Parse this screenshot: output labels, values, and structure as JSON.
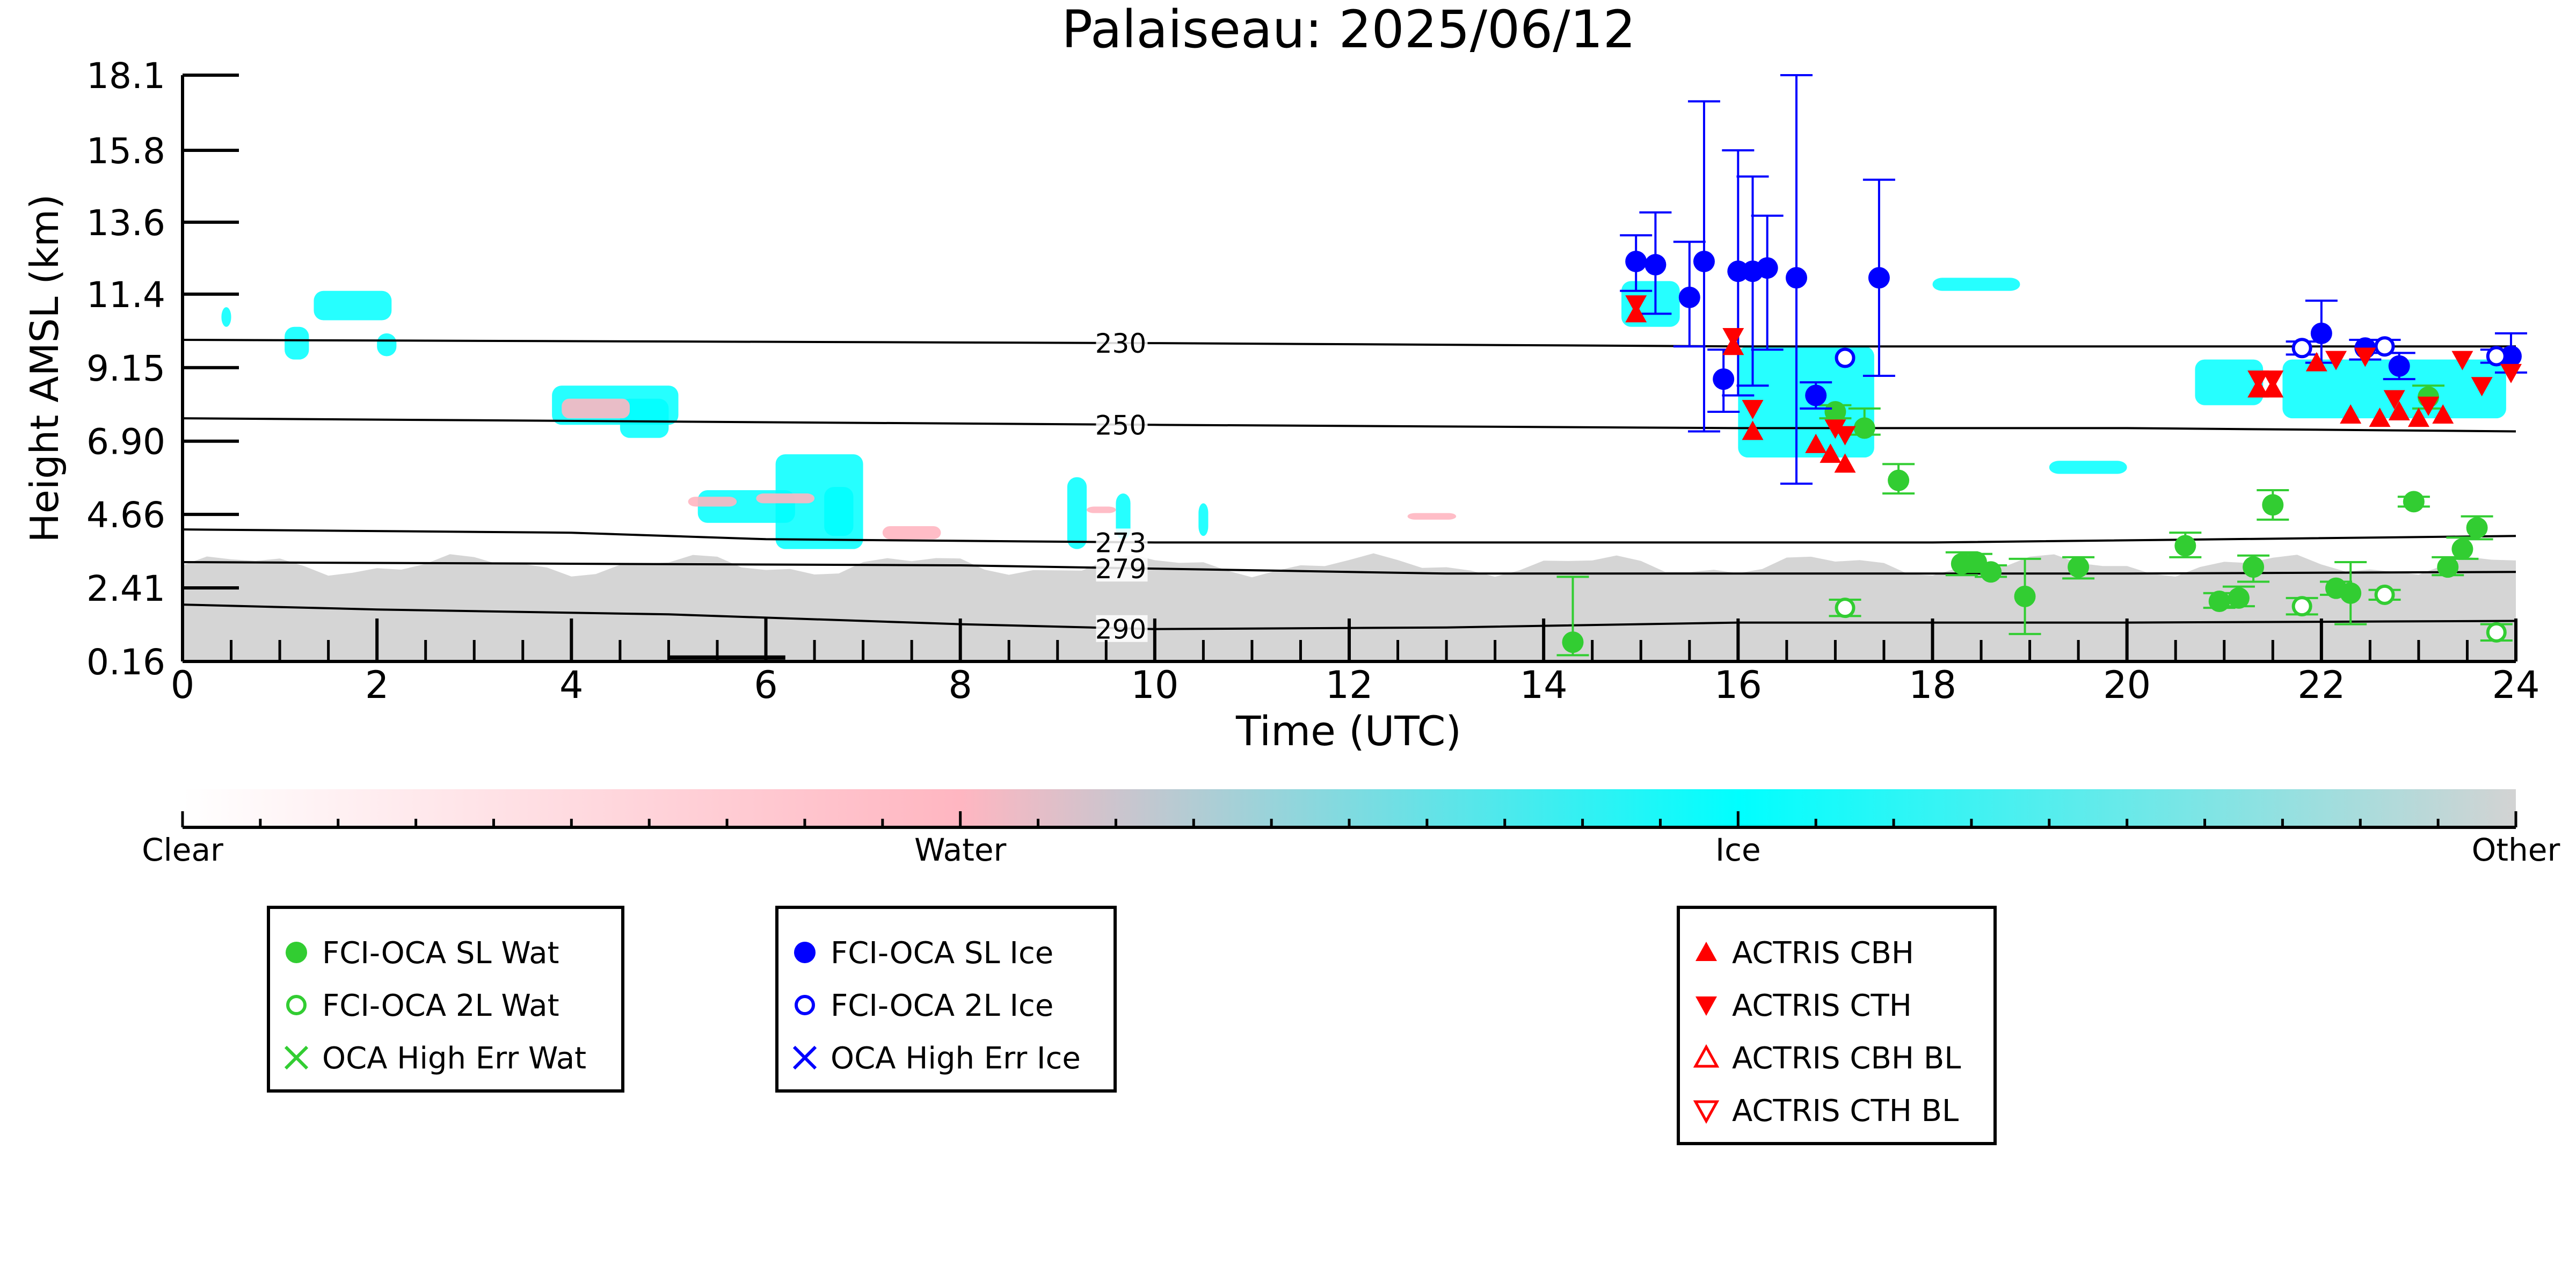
{
  "chart_data": {
    "type": "scatter",
    "title": "Palaiseau: 2025/06/12",
    "xlabel": "Time (UTC)",
    "ylabel": "Height AMSL (km)",
    "xlim": [
      0,
      24
    ],
    "ylim": [
      0.16,
      18.1
    ],
    "x_ticks": [
      "0",
      "2",
      "4",
      "6",
      "8",
      "10",
      "12",
      "14",
      "16",
      "18",
      "20",
      "22",
      "24"
    ],
    "y_ticks": [
      "0.16",
      "2.41",
      "4.66",
      "6.90",
      "9.15",
      "11.4",
      "13.6",
      "15.8",
      "18.1"
    ],
    "y_tick_values": [
      0.16,
      2.41,
      4.66,
      6.9,
      9.15,
      11.4,
      13.6,
      15.8,
      18.1
    ],
    "colors": {
      "water": "#32cd32",
      "ice": "#0000ff",
      "actris": "#ff0000",
      "cloud_ice": "#00ffff",
      "cloud_water": "#ffb6c1",
      "cloud_other": "#d3d3d3"
    },
    "temperature_contours": [
      {
        "label": "230",
        "x": [
          0,
          10,
          16,
          20,
          24
        ],
        "y": [
          10.0,
          9.9,
          9.8,
          9.8,
          9.8
        ]
      },
      {
        "label": "250",
        "x": [
          0,
          10,
          16,
          20,
          24
        ],
        "y": [
          7.6,
          7.4,
          7.3,
          7.3,
          7.2
        ]
      },
      {
        "label": "273",
        "x": [
          0,
          4,
          6,
          10,
          14,
          18,
          24
        ],
        "y": [
          4.2,
          4.1,
          3.9,
          3.8,
          3.8,
          3.8,
          4.0
        ]
      },
      {
        "label": "279",
        "x": [
          0,
          4,
          8,
          10,
          13,
          16,
          20,
          24
        ],
        "y": [
          3.2,
          3.15,
          3.1,
          3.0,
          2.85,
          2.85,
          2.85,
          2.9
        ]
      },
      {
        "label": "290",
        "x": [
          0,
          2,
          5,
          8,
          10,
          13,
          16,
          20,
          24
        ],
        "y": [
          1.9,
          1.75,
          1.6,
          1.3,
          1.15,
          1.2,
          1.35,
          1.35,
          1.4
        ]
      }
    ],
    "clear_sky_marker": {
      "x": [
        5,
        6.2
      ],
      "y": 0.28
    },
    "series": [
      {
        "name": "FCI-OCA SL Wat",
        "color": "#32cd32",
        "marker": "circle-filled",
        "points": [
          {
            "x": 14.3,
            "y": 0.75,
            "lo": 0.35,
            "hi": 2.75
          },
          {
            "x": 17.0,
            "y": 7.8,
            "lo": 7.6,
            "hi": 8.0
          },
          {
            "x": 17.3,
            "y": 7.3,
            "lo": 7.1,
            "hi": 7.9
          },
          {
            "x": 17.65,
            "y": 5.7,
            "lo": 5.3,
            "hi": 6.2
          },
          {
            "x": 18.3,
            "y": 3.15,
            "lo": 2.8,
            "hi": 3.5
          },
          {
            "x": 18.45,
            "y": 3.2,
            "lo": 2.9,
            "hi": 3.45
          },
          {
            "x": 18.6,
            "y": 2.9,
            "lo": 2.75,
            "hi": 3.1
          },
          {
            "x": 18.95,
            "y": 2.15,
            "lo": 1.0,
            "hi": 3.3
          },
          {
            "x": 19.5,
            "y": 3.05,
            "lo": 2.7,
            "hi": 3.35
          },
          {
            "x": 20.6,
            "y": 3.7,
            "lo": 3.35,
            "hi": 4.1
          },
          {
            "x": 20.95,
            "y": 2.0,
            "lo": 1.8,
            "hi": 2.25
          },
          {
            "x": 21.15,
            "y": 2.1,
            "lo": 1.85,
            "hi": 2.45
          },
          {
            "x": 21.3,
            "y": 3.05,
            "lo": 2.6,
            "hi": 3.4
          },
          {
            "x": 21.5,
            "y": 4.95,
            "lo": 4.5,
            "hi": 5.4
          },
          {
            "x": 22.15,
            "y": 2.4,
            "lo": 2.2,
            "hi": 2.6
          },
          {
            "x": 22.3,
            "y": 2.25,
            "lo": 1.3,
            "hi": 3.2
          },
          {
            "x": 22.95,
            "y": 5.05,
            "lo": 4.9,
            "hi": 5.2
          },
          {
            "x": 23.1,
            "y": 8.25,
            "lo": 7.9,
            "hi": 8.6
          },
          {
            "x": 23.3,
            "y": 3.05,
            "lo": 2.8,
            "hi": 3.35
          },
          {
            "x": 23.45,
            "y": 3.6,
            "lo": 3.3,
            "hi": 3.95
          },
          {
            "x": 23.6,
            "y": 4.25,
            "lo": 3.9,
            "hi": 4.6
          }
        ]
      },
      {
        "name": "FCI-OCA 2L Wat",
        "color": "#32cd32",
        "marker": "circle-open",
        "points": [
          {
            "x": 17.1,
            "y": 1.8,
            "lo": 1.55,
            "hi": 2.05
          },
          {
            "x": 21.8,
            "y": 1.85,
            "lo": 1.6,
            "hi": 2.1
          },
          {
            "x": 22.65,
            "y": 2.2,
            "lo": 2.05,
            "hi": 2.35
          },
          {
            "x": 23.8,
            "y": 1.05,
            "lo": 0.8,
            "hi": 1.3
          }
        ]
      },
      {
        "name": "OCA High Err Wat",
        "color": "#32cd32",
        "marker": "x",
        "points": []
      },
      {
        "name": "FCI-OCA SL Ice",
        "color": "#0000ff",
        "marker": "circle-filled",
        "points": [
          {
            "x": 14.95,
            "y": 12.4,
            "lo": 11.5,
            "hi": 13.2
          },
          {
            "x": 15.15,
            "y": 12.3,
            "lo": 10.8,
            "hi": 13.9
          },
          {
            "x": 15.5,
            "y": 11.3,
            "lo": 9.8,
            "hi": 13.0
          },
          {
            "x": 15.65,
            "y": 12.4,
            "lo": 7.2,
            "hi": 17.3
          },
          {
            "x": 15.85,
            "y": 8.8,
            "lo": 7.8,
            "hi": 9.7
          },
          {
            "x": 16.0,
            "y": 12.1,
            "lo": 8.3,
            "hi": 15.8
          },
          {
            "x": 16.15,
            "y": 12.1,
            "lo": 8.6,
            "hi": 15.0
          },
          {
            "x": 16.3,
            "y": 12.2,
            "lo": 9.7,
            "hi": 13.8
          },
          {
            "x": 16.6,
            "y": 11.9,
            "lo": 5.6,
            "hi": 18.1
          },
          {
            "x": 16.8,
            "y": 8.3,
            "lo": 7.9,
            "hi": 8.7
          },
          {
            "x": 17.45,
            "y": 11.9,
            "lo": 8.9,
            "hi": 14.9
          },
          {
            "x": 22.0,
            "y": 10.2,
            "lo": 9.3,
            "hi": 11.2
          },
          {
            "x": 22.45,
            "y": 9.75,
            "lo": 9.4,
            "hi": 10.0
          },
          {
            "x": 22.8,
            "y": 9.2,
            "lo": 8.8,
            "hi": 9.6
          },
          {
            "x": 23.95,
            "y": 9.5,
            "lo": 9.0,
            "hi": 10.2
          }
        ]
      },
      {
        "name": "FCI-OCA 2L Ice",
        "color": "#0000ff",
        "marker": "circle-open",
        "points": [
          {
            "x": 17.1,
            "y": 9.45,
            "lo": 9.45,
            "hi": 9.45
          },
          {
            "x": 21.8,
            "y": 9.75,
            "lo": 9.55,
            "hi": 9.95
          },
          {
            "x": 22.65,
            "y": 9.8,
            "lo": 9.6,
            "hi": 10.0
          },
          {
            "x": 23.8,
            "y": 9.5,
            "lo": 9.3,
            "hi": 9.7
          }
        ]
      },
      {
        "name": "OCA High Err Ice",
        "color": "#0000ff",
        "marker": "x",
        "points": []
      },
      {
        "name": "ACTRIS CBH",
        "color": "#ff0000",
        "marker": "triangle-up",
        "points": [
          {
            "x": 14.95,
            "y": 10.8
          },
          {
            "x": 15.95,
            "y": 9.8
          },
          {
            "x": 16.15,
            "y": 7.2
          },
          {
            "x": 16.8,
            "y": 6.8
          },
          {
            "x": 16.95,
            "y": 6.5
          },
          {
            "x": 17.1,
            "y": 6.2
          },
          {
            "x": 21.35,
            "y": 8.5
          },
          {
            "x": 21.5,
            "y": 8.5
          },
          {
            "x": 21.95,
            "y": 9.3
          },
          {
            "x": 22.3,
            "y": 7.7
          },
          {
            "x": 22.6,
            "y": 7.6
          },
          {
            "x": 22.8,
            "y": 7.8
          },
          {
            "x": 23.0,
            "y": 7.6
          },
          {
            "x": 23.25,
            "y": 7.7
          }
        ]
      },
      {
        "name": "ACTRIS CTH",
        "color": "#ff0000",
        "marker": "triangle-down",
        "points": [
          {
            "x": 14.95,
            "y": 11.1
          },
          {
            "x": 15.95,
            "y": 10.1
          },
          {
            "x": 16.15,
            "y": 7.9
          },
          {
            "x": 17.0,
            "y": 7.3
          },
          {
            "x": 17.1,
            "y": 7.1
          },
          {
            "x": 21.35,
            "y": 8.8
          },
          {
            "x": 21.5,
            "y": 8.8
          },
          {
            "x": 22.15,
            "y": 9.4
          },
          {
            "x": 22.45,
            "y": 9.5
          },
          {
            "x": 22.75,
            "y": 8.2
          },
          {
            "x": 23.1,
            "y": 8.0
          },
          {
            "x": 23.45,
            "y": 9.4
          },
          {
            "x": 23.65,
            "y": 8.6
          },
          {
            "x": 23.95,
            "y": 9.0
          }
        ]
      },
      {
        "name": "ACTRIS CBH BL",
        "color": "#ff0000",
        "marker": "triangle-up-open",
        "points": []
      },
      {
        "name": "ACTRIS CTH BL",
        "color": "#ff0000",
        "marker": "triangle-down-open",
        "points": []
      }
    ],
    "colorbar": {
      "labels": [
        "Clear",
        "Water",
        "Ice",
        "Other"
      ],
      "stops": [
        "#ffffff",
        "#ffb6c1",
        "#00ffff",
        "#d3d3d3"
      ]
    },
    "legends": [
      {
        "entries": [
          {
            "label": "FCI-OCA SL Wat",
            "color": "#32cd32",
            "marker": "circle-filled"
          },
          {
            "label": "FCI-OCA 2L Wat",
            "color": "#32cd32",
            "marker": "circle-open"
          },
          {
            "label": "OCA High Err Wat",
            "color": "#32cd32",
            "marker": "x"
          }
        ]
      },
      {
        "entries": [
          {
            "label": "FCI-OCA SL Ice",
            "color": "#0000ff",
            "marker": "circle-filled"
          },
          {
            "label": "FCI-OCA 2L Ice",
            "color": "#0000ff",
            "marker": "circle-open"
          },
          {
            "label": "OCA High Err Ice",
            "color": "#0000ff",
            "marker": "x"
          }
        ]
      },
      {
        "entries": [
          {
            "label": "ACTRIS CBH",
            "color": "#ff0000",
            "marker": "triangle-up"
          },
          {
            "label": "ACTRIS CTH",
            "color": "#ff0000",
            "marker": "triangle-down"
          },
          {
            "label": "ACTRIS CBH BL",
            "color": "#ff0000",
            "marker": "triangle-up-open"
          },
          {
            "label": "ACTRIS CTH BL",
            "color": "#ff0000",
            "marker": "triangle-down-open"
          }
        ]
      }
    ]
  }
}
